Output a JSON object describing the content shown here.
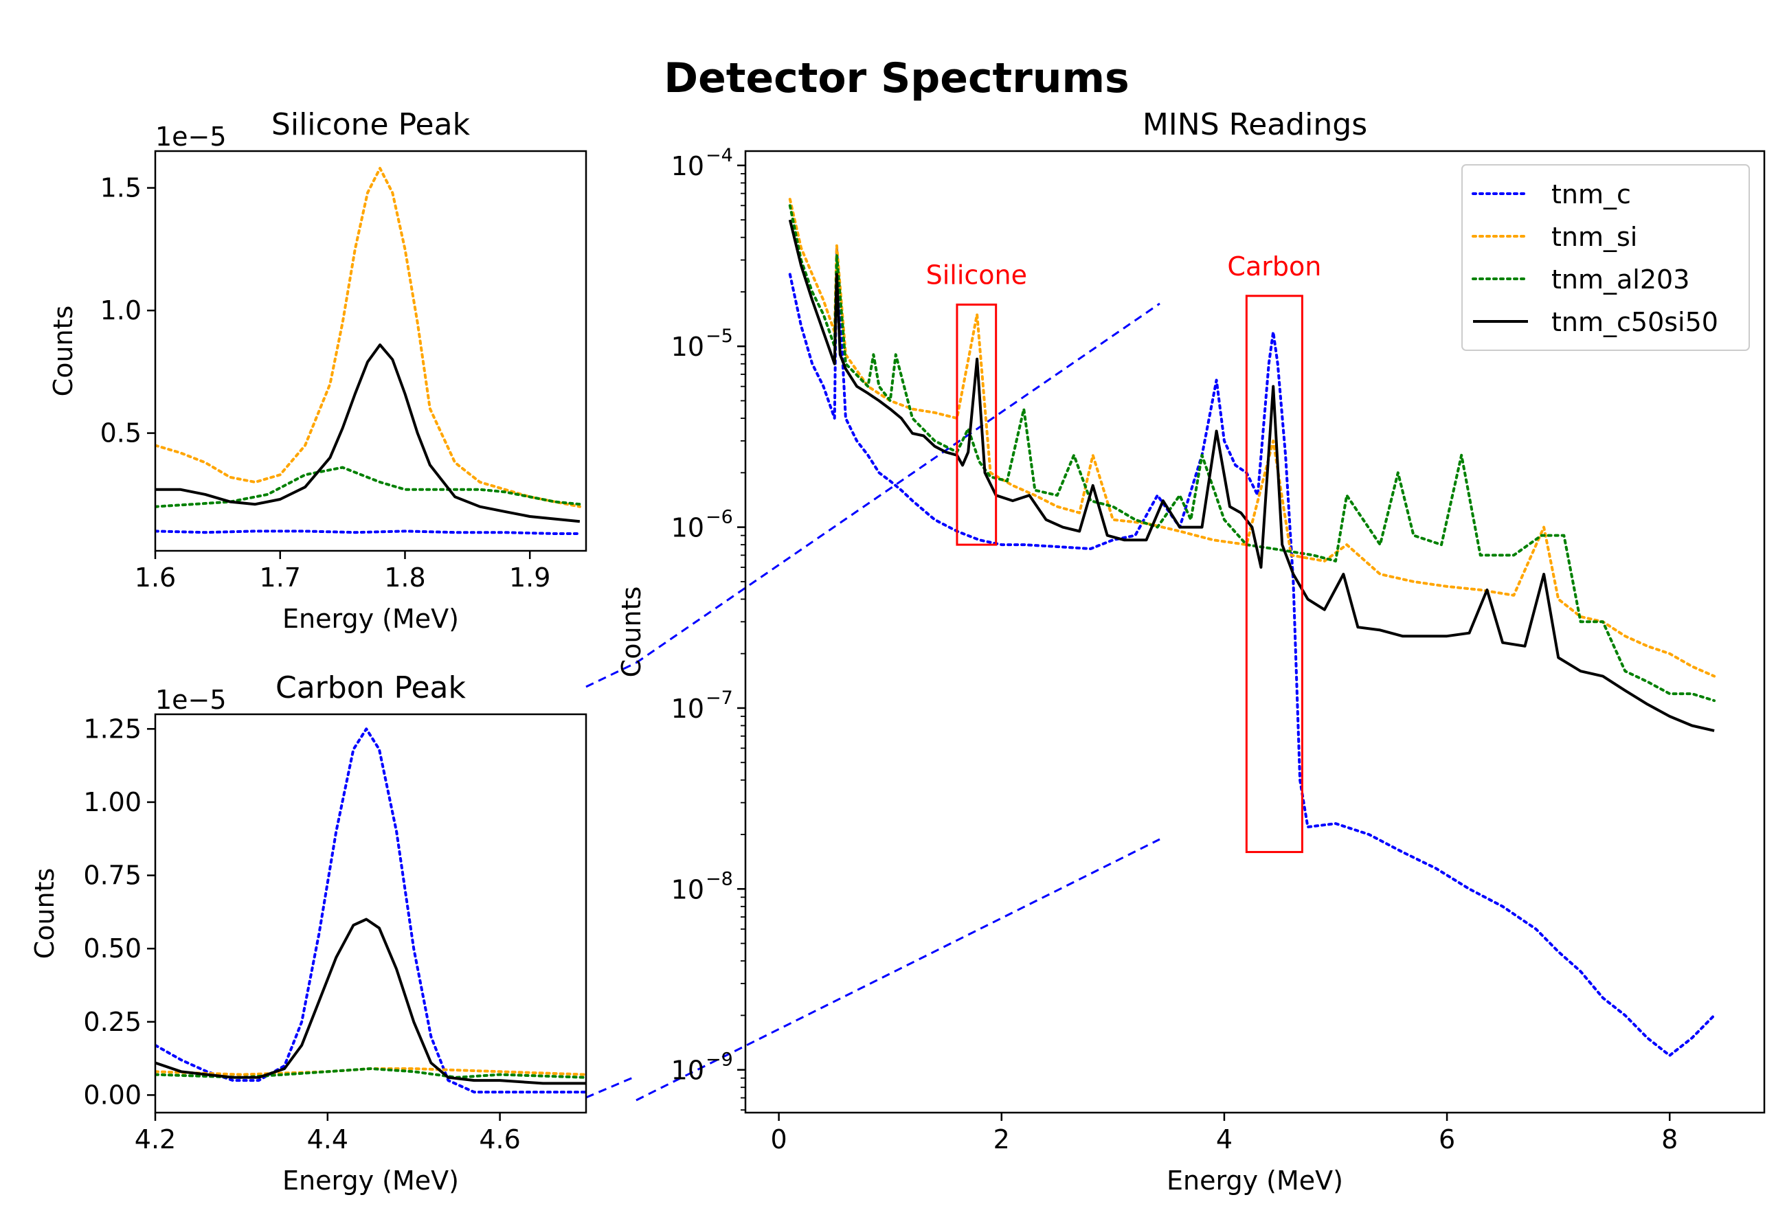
{
  "figure": {
    "suptitle": "Detector Spectrums"
  },
  "legend_entries": [
    "tnm_c",
    "tnm_si",
    "tnm_al203",
    "tnm_c50si50"
  ],
  "colors": {
    "tnm_c": "#0000ff",
    "tnm_si": "#ffa500",
    "tnm_al203": "#008000",
    "tnm_c50si50": "#000000",
    "annotation": "#ff0000"
  },
  "chart_data": [
    {
      "id": "main",
      "type": "line",
      "title": "MINS Readings",
      "xlabel": "Energy (MeV)",
      "ylabel": "Counts",
      "yscale": "log",
      "xlim": [
        -0.3,
        8.85
      ],
      "ylim": [
        5.8e-10,
        0.00012
      ],
      "xticks": [
        "0",
        "2",
        "4",
        "6",
        "8"
      ],
      "xtick_values": [
        0,
        2,
        4,
        6,
        8
      ],
      "yticks": [
        "10",
        "10",
        "10",
        "10",
        "10",
        "10"
      ],
      "ytick_exponents": [
        "−9",
        "−8",
        "−7",
        "−6",
        "−5",
        "−4"
      ],
      "ytick_values": [
        1e-09,
        1e-08,
        1e-07,
        1e-06,
        1e-05,
        0.0001
      ],
      "legend": "top-right",
      "annotations": [
        {
          "label": "Silicone",
          "box": {
            "x": [
              1.6,
              1.95
            ],
            "y": [
              8e-07,
              1.7e-05
            ]
          }
        },
        {
          "label": "Carbon",
          "box": {
            "x": [
              4.2,
              4.7
            ],
            "y": [
              1.6e-08,
              1.9e-05
            ]
          }
        }
      ],
      "series": [
        {
          "name": "tnm_c",
          "style": "dotted",
          "x": [
            0.1,
            0.2,
            0.3,
            0.4,
            0.5,
            0.52,
            0.6,
            0.7,
            0.8,
            0.9,
            1.0,
            1.1,
            1.2,
            1.4,
            1.6,
            1.8,
            2.0,
            2.2,
            2.5,
            2.8,
            3.0,
            3.2,
            3.4,
            3.6,
            3.8,
            3.93,
            4.0,
            4.1,
            4.2,
            4.3,
            4.4,
            4.44,
            4.48,
            4.55,
            4.62,
            4.68,
            4.75,
            5.0,
            5.3,
            5.6,
            5.9,
            6.2,
            6.5,
            6.8,
            7.0,
            7.2,
            7.4,
            7.6,
            7.8,
            8.0,
            8.2,
            8.4
          ],
          "y": [
            2.5e-05,
            1.3e-05,
            8e-06,
            6e-06,
            4e-06,
            3.5e-05,
            4e-06,
            3e-06,
            2.5e-06,
            2e-06,
            1.8e-06,
            1.6e-06,
            1.4e-06,
            1.1e-06,
            9.5e-07,
            8.5e-07,
            8e-07,
            8e-07,
            7.8e-07,
            7.6e-07,
            8.5e-07,
            9e-07,
            1.5e-06,
            1e-06,
            2.5e-06,
            6.5e-06,
            3e-06,
            2.2e-06,
            2e-06,
            1.5e-06,
            8e-06,
            1.2e-05,
            8e-06,
            2.5e-06,
            5e-07,
            4e-08,
            2.2e-08,
            2.3e-08,
            2e-08,
            1.6e-08,
            1.3e-08,
            1e-08,
            8e-09,
            6e-09,
            4.5e-09,
            3.5e-09,
            2.5e-09,
            2e-09,
            1.5e-09,
            1.2e-09,
            1.5e-09,
            2e-09
          ]
        },
        {
          "name": "tnm_si",
          "style": "dotted",
          "x": [
            0.1,
            0.2,
            0.3,
            0.4,
            0.5,
            0.52,
            0.6,
            0.8,
            1.0,
            1.2,
            1.4,
            1.6,
            1.78,
            1.9,
            2.1,
            2.3,
            2.5,
            2.7,
            2.82,
            3.0,
            3.3,
            3.6,
            3.9,
            4.2,
            4.44,
            4.6,
            4.9,
            5.1,
            5.4,
            5.7,
            6.0,
            6.3,
            6.6,
            6.87,
            7.0,
            7.2,
            7.4,
            7.6,
            7.8,
            8.0,
            8.2,
            8.4
          ],
          "y": [
            6.5e-05,
            3.5e-05,
            2.5e-05,
            1.8e-05,
            1.2e-05,
            3.6e-05,
            9e-06,
            6e-06,
            5e-06,
            4.5e-06,
            4.3e-06,
            4e-06,
            1.5e-05,
            2e-06,
            1.7e-06,
            1.5e-06,
            1.3e-06,
            1.2e-06,
            2.5e-06,
            1.1e-06,
            1.05e-06,
            9.5e-07,
            8.5e-07,
            8e-07,
            3e-06,
            7e-07,
            6.5e-07,
            8e-07,
            5.5e-07,
            5e-07,
            4.7e-07,
            4.5e-07,
            4.2e-07,
            1e-06,
            4e-07,
            3.2e-07,
            3e-07,
            2.5e-07,
            2.2e-07,
            2e-07,
            1.7e-07,
            1.5e-07
          ]
        },
        {
          "name": "tnm_al203",
          "style": "dotted",
          "x": [
            0.1,
            0.2,
            0.3,
            0.4,
            0.5,
            0.52,
            0.6,
            0.8,
            0.85,
            0.9,
            1.0,
            1.05,
            1.2,
            1.4,
            1.6,
            1.7,
            1.8,
            1.9,
            2.05,
            2.2,
            2.3,
            2.5,
            2.65,
            2.8,
            3.0,
            3.2,
            3.4,
            3.6,
            3.7,
            3.8,
            4.0,
            4.2,
            4.5,
            4.8,
            5.0,
            5.1,
            5.4,
            5.56,
            5.7,
            5.95,
            6.13,
            6.3,
            6.6,
            6.85,
            7.05,
            7.2,
            7.4,
            7.6,
            7.8,
            8.0,
            8.2,
            8.4
          ],
          "y": [
            6e-05,
            3e-05,
            2e-05,
            1.5e-05,
            1e-05,
            3.2e-05,
            8e-06,
            6e-06,
            9e-06,
            6e-06,
            5e-06,
            9e-06,
            4e-06,
            3e-06,
            2.6e-06,
            3.5e-06,
            2.3e-06,
            1.9e-06,
            1.8e-06,
            4.5e-06,
            1.6e-06,
            1.5e-06,
            2.5e-06,
            1.4e-06,
            1.3e-06,
            1.1e-06,
            1e-06,
            1.5e-06,
            1.1e-06,
            2.5e-06,
            1.1e-06,
            8e-07,
            7.5e-07,
            7e-07,
            6.5e-07,
            1.5e-06,
            8e-07,
            2e-06,
            9e-07,
            8e-07,
            2.5e-06,
            7e-07,
            7e-07,
            9e-07,
            9e-07,
            3e-07,
            3e-07,
            1.6e-07,
            1.4e-07,
            1.2e-07,
            1.2e-07,
            1.1e-07
          ]
        },
        {
          "name": "tnm_c50si50",
          "style": "solid",
          "x": [
            0.1,
            0.2,
            0.3,
            0.4,
            0.5,
            0.52,
            0.55,
            0.6,
            0.7,
            0.8,
            0.9,
            1.0,
            1.1,
            1.2,
            1.3,
            1.4,
            1.5,
            1.6,
            1.65,
            1.7,
            1.78,
            1.85,
            1.95,
            2.1,
            2.25,
            2.4,
            2.55,
            2.7,
            2.82,
            2.95,
            3.1,
            3.3,
            3.45,
            3.6,
            3.8,
            3.93,
            4.05,
            4.15,
            4.25,
            4.33,
            4.44,
            4.52,
            4.62,
            4.75,
            4.9,
            5.07,
            5.2,
            5.4,
            5.6,
            5.8,
            6.0,
            6.2,
            6.36,
            6.5,
            6.7,
            6.87,
            7.0,
            7.2,
            7.4,
            7.6,
            7.8,
            8.0,
            8.2,
            8.4
          ],
          "y": [
            5e-05,
            2.8e-05,
            1.8e-05,
            1.2e-05,
            8e-06,
            2.5e-05,
            9e-06,
            7.5e-06,
            6e-06,
            5.5e-06,
            5e-06,
            4.5e-06,
            4e-06,
            3.3e-06,
            3.2e-06,
            2.8e-06,
            2.6e-06,
            2.5e-06,
            2.2e-06,
            2.6e-06,
            8.5e-06,
            2e-06,
            1.5e-06,
            1.4e-06,
            1.5e-06,
            1.1e-06,
            1e-06,
            9.5e-07,
            1.7e-06,
            9e-07,
            8.5e-07,
            8.5e-07,
            1.4e-06,
            1e-06,
            1e-06,
            3.4e-06,
            1.3e-06,
            1.2e-06,
            1e-06,
            6e-07,
            6e-06,
            8e-07,
            5.5e-07,
            4e-07,
            3.5e-07,
            5.5e-07,
            2.8e-07,
            2.7e-07,
            2.5e-07,
            2.5e-07,
            2.5e-07,
            2.6e-07,
            4.5e-07,
            2.3e-07,
            2.2e-07,
            5.5e-07,
            1.9e-07,
            1.6e-07,
            1.5e-07,
            1.25e-07,
            1.05e-07,
            9e-08,
            8e-08,
            7.5e-08
          ]
        }
      ]
    },
    {
      "id": "silicone",
      "type": "line",
      "title": "Silicone Peak",
      "xlabel": "Energy (MeV)",
      "ylabel": "Counts",
      "offset_label": "1e−5",
      "xlim": [
        1.6,
        1.945
      ],
      "ylim": [
        0.02,
        1.65
      ],
      "xticks": [
        "1.6",
        "1.7",
        "1.8",
        "1.9"
      ],
      "xtick_values": [
        1.6,
        1.7,
        1.8,
        1.9
      ],
      "yticks": [
        "0.5",
        "1.0",
        "1.5"
      ],
      "ytick_values": [
        0.5,
        1.0,
        1.5
      ],
      "series": [
        {
          "name": "tnm_c",
          "style": "dotted",
          "x": [
            1.6,
            1.64,
            1.68,
            1.72,
            1.76,
            1.8,
            1.84,
            1.88,
            1.92,
            1.94
          ],
          "y": [
            0.1,
            0.095,
            0.1,
            0.1,
            0.095,
            0.1,
            0.095,
            0.095,
            0.09,
            0.09
          ]
        },
        {
          "name": "tnm_si",
          "style": "dotted",
          "x": [
            1.6,
            1.62,
            1.64,
            1.66,
            1.68,
            1.7,
            1.72,
            1.74,
            1.75,
            1.76,
            1.77,
            1.78,
            1.79,
            1.8,
            1.81,
            1.82,
            1.84,
            1.86,
            1.88,
            1.9,
            1.92,
            1.94
          ],
          "y": [
            0.45,
            0.42,
            0.38,
            0.32,
            0.3,
            0.33,
            0.45,
            0.7,
            0.95,
            1.25,
            1.48,
            1.58,
            1.48,
            1.25,
            0.95,
            0.6,
            0.38,
            0.3,
            0.27,
            0.24,
            0.22,
            0.2
          ]
        },
        {
          "name": "tnm_al203",
          "style": "dotted",
          "x": [
            1.6,
            1.63,
            1.66,
            1.69,
            1.72,
            1.75,
            1.78,
            1.8,
            1.83,
            1.86,
            1.88,
            1.9,
            1.92,
            1.94
          ],
          "y": [
            0.2,
            0.21,
            0.22,
            0.25,
            0.33,
            0.36,
            0.3,
            0.27,
            0.27,
            0.27,
            0.26,
            0.24,
            0.22,
            0.21
          ]
        },
        {
          "name": "tnm_c50si50",
          "style": "solid",
          "x": [
            1.6,
            1.62,
            1.64,
            1.66,
            1.68,
            1.7,
            1.72,
            1.74,
            1.75,
            1.76,
            1.77,
            1.78,
            1.79,
            1.8,
            1.81,
            1.82,
            1.84,
            1.86,
            1.88,
            1.9,
            1.92,
            1.94
          ],
          "y": [
            0.27,
            0.27,
            0.25,
            0.22,
            0.21,
            0.23,
            0.28,
            0.4,
            0.52,
            0.66,
            0.79,
            0.86,
            0.8,
            0.66,
            0.5,
            0.37,
            0.24,
            0.2,
            0.18,
            0.16,
            0.15,
            0.14
          ]
        }
      ]
    },
    {
      "id": "carbon",
      "type": "line",
      "title": "Carbon Peak",
      "xlabel": "Energy (MeV)",
      "ylabel": "Counts",
      "offset_label": "1e−5",
      "xlim": [
        4.2,
        4.7
      ],
      "ylim": [
        -0.06,
        1.3
      ],
      "xticks": [
        "4.2",
        "4.4",
        "4.6"
      ],
      "xtick_values": [
        4.2,
        4.4,
        4.6
      ],
      "yticks": [
        "0.00",
        "0.25",
        "0.50",
        "0.75",
        "1.00",
        "1.25"
      ],
      "ytick_values": [
        0,
        0.25,
        0.5,
        0.75,
        1.0,
        1.25
      ],
      "series": [
        {
          "name": "tnm_c",
          "style": "dotted",
          "x": [
            4.2,
            4.23,
            4.26,
            4.29,
            4.32,
            4.35,
            4.37,
            4.39,
            4.41,
            4.43,
            4.445,
            4.46,
            4.48,
            4.5,
            4.52,
            4.54,
            4.57,
            4.6,
            4.65,
            4.7
          ],
          "y": [
            0.17,
            0.12,
            0.08,
            0.05,
            0.05,
            0.1,
            0.25,
            0.55,
            0.9,
            1.18,
            1.25,
            1.18,
            0.9,
            0.5,
            0.2,
            0.05,
            0.01,
            0.01,
            0.01,
            0.01
          ]
        },
        {
          "name": "tnm_si",
          "style": "dotted",
          "x": [
            4.2,
            4.3,
            4.4,
            4.45,
            4.5,
            4.6,
            4.7
          ],
          "y": [
            0.08,
            0.07,
            0.08,
            0.09,
            0.09,
            0.08,
            0.07
          ]
        },
        {
          "name": "tnm_al203",
          "style": "dotted",
          "x": [
            4.2,
            4.3,
            4.4,
            4.45,
            4.5,
            4.55,
            4.6,
            4.7
          ],
          "y": [
            0.07,
            0.06,
            0.08,
            0.09,
            0.08,
            0.06,
            0.07,
            0.06
          ]
        },
        {
          "name": "tnm_c50si50",
          "style": "solid",
          "x": [
            4.2,
            4.23,
            4.26,
            4.29,
            4.32,
            4.35,
            4.37,
            4.39,
            4.41,
            4.43,
            4.445,
            4.46,
            4.48,
            4.5,
            4.52,
            4.54,
            4.57,
            4.6,
            4.65,
            4.7
          ],
          "y": [
            0.11,
            0.08,
            0.07,
            0.06,
            0.06,
            0.09,
            0.17,
            0.32,
            0.47,
            0.58,
            0.6,
            0.57,
            0.43,
            0.25,
            0.11,
            0.06,
            0.05,
            0.05,
            0.04,
            0.04
          ]
        }
      ]
    }
  ]
}
